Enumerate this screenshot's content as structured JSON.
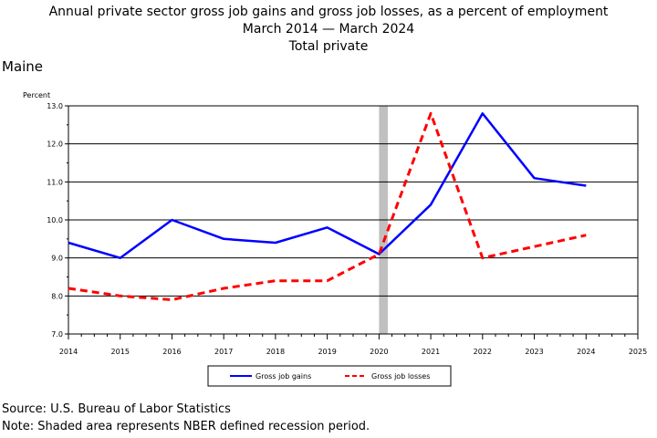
{
  "header": {
    "title_line1": "Annual private sector gross job gains and gross job losses, as a percent of employment",
    "title_line2": "March 2014 — March 2024",
    "title_line3": "Total private",
    "region": "Maine"
  },
  "footer": {
    "source": "Source: U.S. Bureau of Labor Statistics",
    "note": "Note: Shaded area represents NBER defined recession period."
  },
  "chart_data": {
    "type": "line",
    "ylabel": "Percent",
    "ylim": [
      7.0,
      13.0
    ],
    "yticks": [
      "7.0",
      "8.0",
      "9.0",
      "10.0",
      "11.0",
      "12.0",
      "13.0"
    ],
    "xlim": [
      2014,
      2025
    ],
    "xticks": [
      "2014",
      "2015",
      "2016",
      "2017",
      "2018",
      "2019",
      "2020",
      "2021",
      "2022",
      "2023",
      "2024",
      "2025"
    ],
    "grid": true,
    "recession_shading": [
      2020.0,
      2020.17
    ],
    "legend_position": "bottom",
    "x": [
      2014,
      2015,
      2016,
      2017,
      2018,
      2019,
      2020,
      2021,
      2022,
      2023,
      2024
    ],
    "series": [
      {
        "name": "Gross job gains",
        "color": "#0000ff",
        "style": "solid",
        "values": [
          9.4,
          9.0,
          10.0,
          9.5,
          9.4,
          9.8,
          9.1,
          10.4,
          12.8,
          11.1,
          10.9
        ]
      },
      {
        "name": "Gross job losses",
        "color": "#ff0000",
        "style": "dashed",
        "values": [
          8.2,
          8.0,
          7.9,
          8.2,
          8.4,
          8.4,
          9.1,
          12.8,
          9.0,
          9.3,
          9.6
        ]
      }
    ]
  }
}
